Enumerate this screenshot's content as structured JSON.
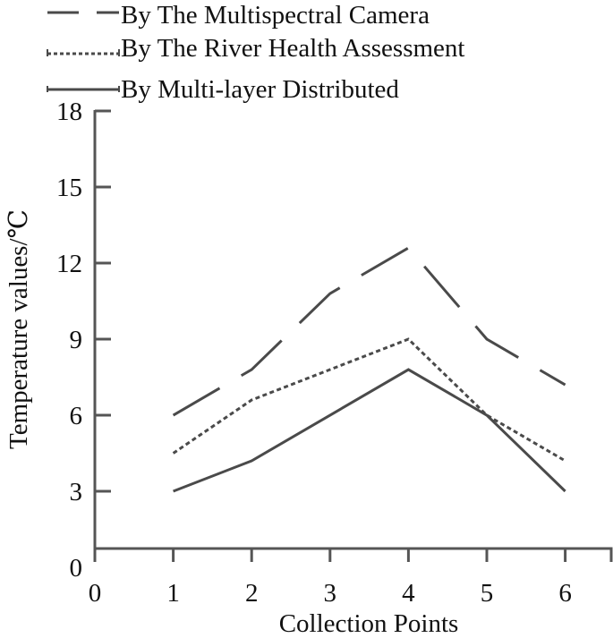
{
  "chart_data": {
    "type": "line",
    "title": "",
    "xlabel": "Collection Points",
    "ylabel": "Temperature values/℃",
    "x": [
      1,
      2,
      3,
      4,
      5,
      6
    ],
    "x_ticks": [
      "0",
      "1",
      "2",
      "3",
      "4",
      "5",
      "6"
    ],
    "y_ticks": [
      "0",
      "3",
      "6",
      "9",
      "12",
      "15",
      "18"
    ],
    "xlim": [
      0,
      6.6
    ],
    "ylim": [
      0,
      18
    ],
    "grid": false,
    "legend_position": "top",
    "series": [
      {
        "name": "By The Multispectral Camera",
        "style": "dashed",
        "values": [
          6.0,
          7.8,
          10.8,
          12.6,
          9.0,
          7.2
        ]
      },
      {
        "name": "By The River Health Assessment",
        "style": "dotted",
        "values": [
          4.5,
          6.6,
          7.8,
          9.0,
          6.0,
          4.2
        ]
      },
      {
        "name": "By Multi-layer Distributed",
        "style": "solid",
        "values": [
          3.0,
          4.2,
          6.0,
          7.8,
          6.0,
          3.0
        ]
      }
    ]
  },
  "colors": {
    "line": "#4a4a4a",
    "axis": "#555555",
    "text": "#111111"
  }
}
